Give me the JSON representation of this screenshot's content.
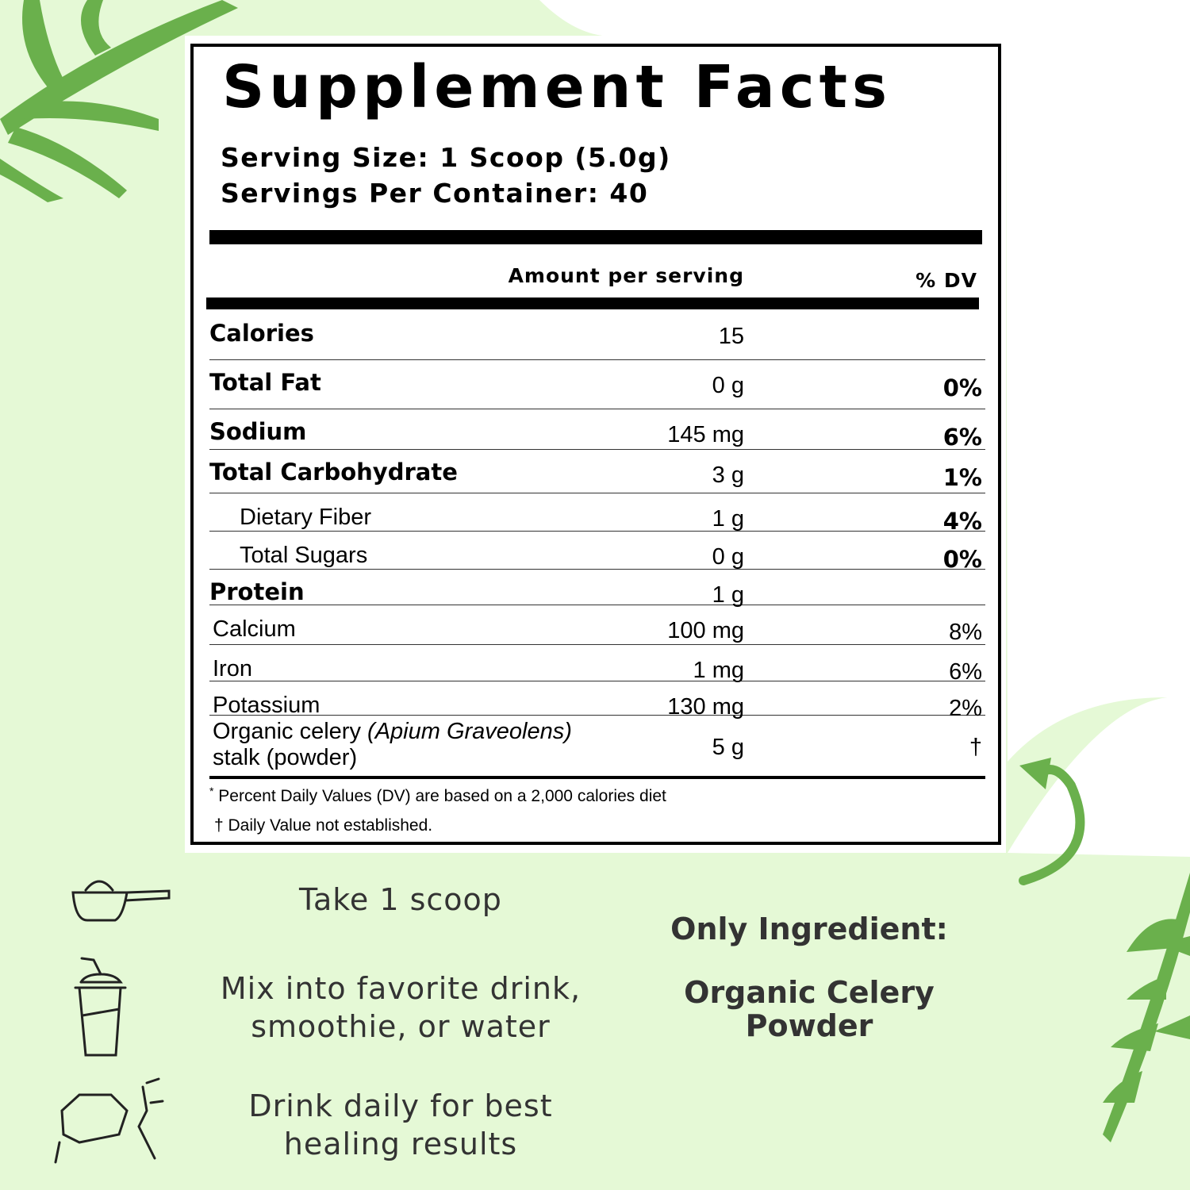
{
  "header": {
    "title": "Supplement Facts",
    "serving_size": "Serving Size: 1 Scoop (5.0g)",
    "servings": "Servings Per Container: 40"
  },
  "columns": {
    "amount": "Amount per serving",
    "dv": "% DV"
  },
  "rows": [
    {
      "name": "Calories",
      "amount": "15",
      "style": "bold"
    },
    {
      "name": "Total Fat",
      "amount": "0 g",
      "dv": "0%",
      "style": "bold"
    },
    {
      "name": "Sodium",
      "amount": "145 mg",
      "dv": "6%",
      "style": "bold"
    },
    {
      "name": "Total Carbohydrate",
      "amount": "3 g",
      "dv": "1%",
      "style": "bold"
    },
    {
      "name": "Dietary Fiber",
      "amount": "1 g",
      "dv": "4%",
      "style": "sub"
    },
    {
      "name": "Total Sugars",
      "amount": "0 g",
      "dv": "0%",
      "style": "sub"
    },
    {
      "name": "Protein",
      "amount": "1 g",
      "style": "bold"
    },
    {
      "name": "Calcium",
      "amount": "100 mg",
      "dv": "8%",
      "style": "plain"
    },
    {
      "name": "Iron",
      "amount": "1 mg",
      "dv": "6%",
      "style": "plain"
    },
    {
      "name": "Potassium",
      "amount": "130 mg",
      "dv": "2%",
      "style": "plain"
    },
    {
      "name": "Organic celery",
      "name_italic": "(Apium Graveolens)",
      "name_line2": "stalk (powder)",
      "amount": "5 g",
      "dv": "†",
      "style": "plain"
    }
  ],
  "footnotes": {
    "asterisk": "*",
    "dv_note": "Percent Daily Values (DV) are based on a 2,000 calories diet",
    "dagger_note": "† Daily Value not established."
  },
  "directions": [
    [
      "Take 1 scoop"
    ],
    [
      "Mix into favorite drink,",
      "smoothie, or water"
    ],
    [
      "Drink daily for best",
      "healing results"
    ]
  ],
  "ingredient": {
    "label": "Only Ingredient:",
    "value": [
      "Organic Celery",
      "Powder"
    ]
  }
}
